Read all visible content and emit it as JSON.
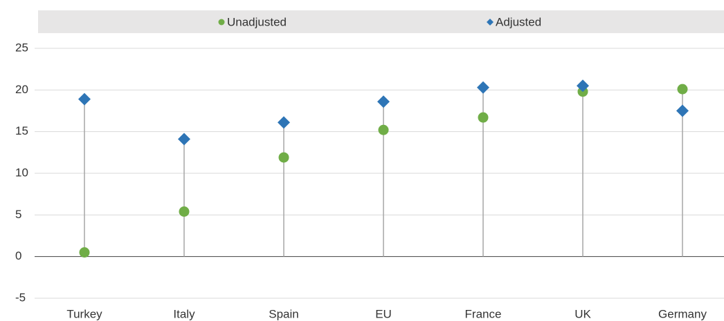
{
  "chart_data": {
    "type": "dot",
    "categories": [
      "Turkey",
      "Italy",
      "Spain",
      "EU",
      "France",
      "UK",
      "Germany"
    ],
    "series": [
      {
        "name": "Unadjusted",
        "color": "#70ad47",
        "marker": "circle",
        "values": [
          0.5,
          5.4,
          11.9,
          15.2,
          16.7,
          19.8,
          20.1
        ]
      },
      {
        "name": "Adjusted",
        "color": "#2e75b6",
        "marker": "diamond",
        "values": [
          18.9,
          14.1,
          16.1,
          18.6,
          20.3,
          20.5,
          17.5
        ]
      }
    ],
    "ylim": [
      -5,
      25
    ],
    "yticks": [
      -5,
      0,
      5,
      10,
      15,
      20,
      25
    ],
    "grid": true,
    "legend": "top"
  }
}
